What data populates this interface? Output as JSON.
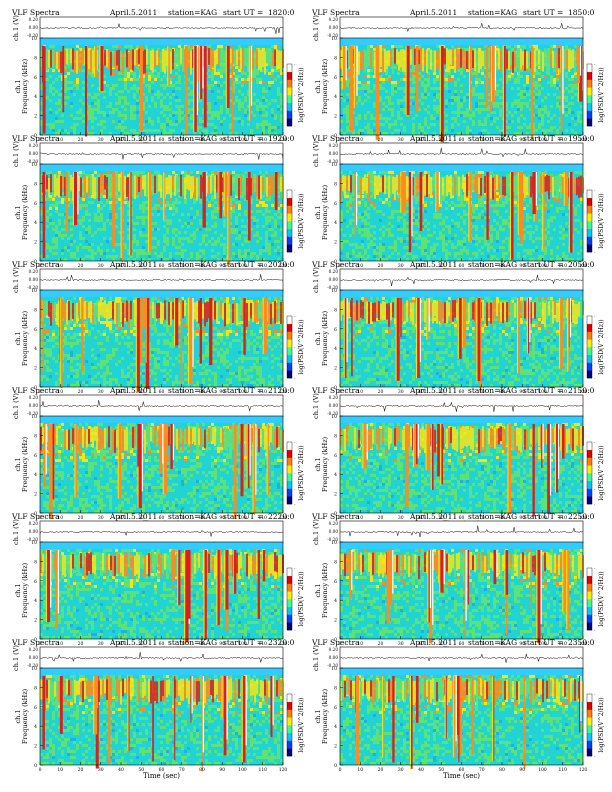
{
  "figure": {
    "header": {
      "title": "VLF Spectra",
      "date": "April.5.2011",
      "station": "station=KAG",
      "start_prefix": "start  UT  ="
    },
    "signal_axis": {
      "label": "ch.1 (V)",
      "ticks": [
        "0.20",
        "0.00",
        "-0.20"
      ]
    },
    "freq_axis": {
      "channel_label": "ch.1",
      "label": "Frequency (kHz)",
      "ticks": [
        "0",
        "2",
        "4",
        "6",
        "8",
        "10"
      ]
    },
    "time_axis": {
      "label": "Time (sec)",
      "ticks_left": [
        "0",
        "10",
        "20",
        "30",
        "40",
        "50",
        "60",
        "70",
        "80",
        "90",
        "100",
        "110",
        "120"
      ],
      "ticks_right": [
        "0",
        "10",
        "20",
        "30",
        "40",
        "50",
        "60",
        "70",
        "80",
        "90",
        "100",
        "110",
        "120"
      ]
    },
    "colorbar": {
      "label": "log(PSD(V^2/Hz))",
      "ticks": [
        "-",
        "-",
        "-",
        "-",
        "-"
      ]
    },
    "colors": {
      "background_band": "#33ccff",
      "noise_cyan": "#22d3d3",
      "noise_green": "#5be37a",
      "active_yellow": "#f5e41a",
      "active_orange": "#ff8a1f",
      "active_red": "#d92020",
      "burst_white": "#ffffff",
      "colorbar": [
        "#00007a",
        "#0040ff",
        "#00c8ff",
        "#33ff99",
        "#f5f000",
        "#ff8000",
        "#e00000",
        "#ffffff"
      ]
    },
    "panels": [
      {
        "start_ut": "1820:0"
      },
      {
        "start_ut": "1850:0"
      },
      {
        "start_ut": "1920:0"
      },
      {
        "start_ut": "1950:0"
      },
      {
        "start_ut": "2020:0"
      },
      {
        "start_ut": "2050:0"
      },
      {
        "start_ut": "2120:0"
      },
      {
        "start_ut": "2150:0"
      },
      {
        "start_ut": "2220:0"
      },
      {
        "start_ut": "2250:0"
      },
      {
        "start_ut": "2320:0"
      },
      {
        "start_ut": "2350:0"
      }
    ]
  }
}
